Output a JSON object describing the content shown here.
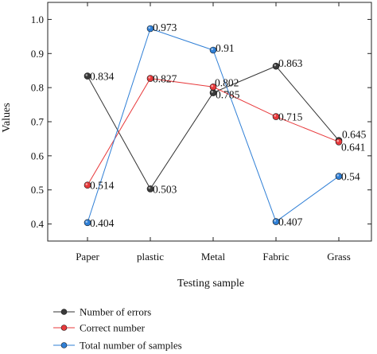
{
  "chart_data": {
    "type": "line",
    "title": "",
    "xlabel": "Testing sample",
    "ylabel": "Values",
    "categories": [
      "Paper",
      "plastic",
      "Metal",
      "Fabric",
      "Grass"
    ],
    "ylim": [
      0.35,
      1.05
    ],
    "yticks": [
      "0.4",
      "0.5",
      "0.6",
      "0.7",
      "0.8",
      "0.9",
      "1.0"
    ],
    "grid": false,
    "legend_position": "bottom-left",
    "series": [
      {
        "name": "Number of errors",
        "color": "#333333",
        "marker_color": "#3a3a3a",
        "values": [
          0.834,
          0.503,
          0.785,
          0.863,
          0.645
        ],
        "labels": [
          "0.834",
          "0.503",
          "0.785",
          "0.863",
          "0.645"
        ]
      },
      {
        "name": "Correct number",
        "color": "#e8393b",
        "marker_color": "#e8393b",
        "values": [
          0.514,
          0.827,
          0.802,
          0.715,
          0.641
        ],
        "labels": [
          "0.514",
          "0.827",
          "0.802",
          "0.715",
          "0.641"
        ]
      },
      {
        "name": "Total number of samples",
        "color": "#2f7fd6",
        "marker_color": "#2f7fd6",
        "values": [
          0.404,
          0.973,
          0.91,
          0.407,
          0.54
        ],
        "labels": [
          "0.404",
          "0.973",
          "0.91",
          "0.407",
          "0.54"
        ]
      }
    ]
  }
}
